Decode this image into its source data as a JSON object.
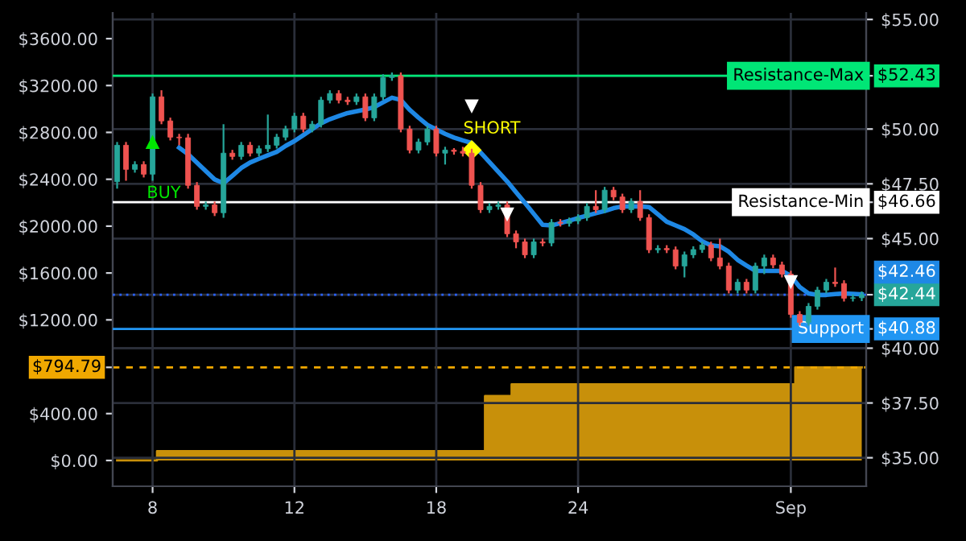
{
  "chart_data": {
    "type": "candlestick",
    "categories": [
      null,
      null,
      null,
      null,
      "8",
      null,
      null,
      null,
      null,
      null,
      null,
      null,
      null,
      null,
      null,
      null,
      null,
      null,
      null,
      null,
      "12",
      null,
      null,
      null,
      null,
      null,
      null,
      null,
      null,
      null,
      null,
      null,
      null,
      null,
      null,
      null,
      "18",
      null,
      null,
      null,
      null,
      null,
      null,
      null,
      null,
      null,
      null,
      null,
      null,
      null,
      null,
      null,
      "24",
      null,
      null,
      null,
      null,
      null,
      null,
      null,
      null,
      null,
      null,
      null,
      null,
      null,
      null,
      null,
      null,
      null,
      null,
      null,
      null,
      null,
      null,
      null,
      "Sep",
      null,
      null,
      null,
      null,
      null,
      null,
      null,
      null
    ],
    "ohlc": [
      [
        47.6,
        49.41,
        47.28,
        49.26
      ],
      [
        49.26,
        49.41,
        47.64,
        48.16
      ],
      [
        48.16,
        48.53,
        48.01,
        48.38
      ],
      [
        48.38,
        48.53,
        47.79,
        47.94
      ],
      [
        47.94,
        51.62,
        47.64,
        51.47
      ],
      [
        51.47,
        51.77,
        50.22,
        50.37
      ],
      [
        50.37,
        50.52,
        49.48,
        49.63
      ],
      [
        49.63,
        49.78,
        49.26,
        49.6
      ],
      [
        49.6,
        49.78,
        47.28,
        47.43
      ],
      [
        47.43,
        47.58,
        46.32,
        46.47
      ],
      [
        46.47,
        46.69,
        46.32,
        46.54
      ],
      [
        46.54,
        46.69,
        46.03,
        46.18
      ],
      [
        46.18,
        50.22,
        45.95,
        48.9
      ],
      [
        48.9,
        49.05,
        48.6,
        48.75
      ],
      [
        48.75,
        49.41,
        48.6,
        49.26
      ],
      [
        49.26,
        49.41,
        48.75,
        48.9
      ],
      [
        48.9,
        49.25,
        48.75,
        49.1
      ],
      [
        49.1,
        50.66,
        48.95,
        49.26
      ],
      [
        49.26,
        49.78,
        49.11,
        49.63
      ],
      [
        49.63,
        50.15,
        49.48,
        50.0
      ],
      [
        50.0,
        50.74,
        49.85,
        50.59
      ],
      [
        50.59,
        50.74,
        49.85,
        50.0
      ],
      [
        50.0,
        50.37,
        49.85,
        50.22
      ],
      [
        50.22,
        51.47,
        50.07,
        51.32
      ],
      [
        51.32,
        51.77,
        51.17,
        51.62
      ],
      [
        51.62,
        51.77,
        51.17,
        51.32
      ],
      [
        51.32,
        51.47,
        51.1,
        51.25
      ],
      [
        51.25,
        51.62,
        51.1,
        51.47
      ],
      [
        51.47,
        51.62,
        50.36,
        50.51
      ],
      [
        50.51,
        51.62,
        50.36,
        51.47
      ],
      [
        51.47,
        52.5,
        51.32,
        52.35
      ],
      [
        52.35,
        52.58,
        52.2,
        52.43
      ],
      [
        52.43,
        52.58,
        49.85,
        50.0
      ],
      [
        50.0,
        50.15,
        48.89,
        49.04
      ],
      [
        49.04,
        49.56,
        48.89,
        49.41
      ],
      [
        49.41,
        50.15,
        49.26,
        50.0
      ],
      [
        50.0,
        50.15,
        48.75,
        48.9
      ],
      [
        48.9,
        49.19,
        48.38,
        49.04
      ],
      [
        49.04,
        49.13,
        48.83,
        48.98
      ],
      [
        48.98,
        49.19,
        48.75,
        48.9
      ],
      [
        48.9,
        49.1,
        47.28,
        47.43
      ],
      [
        47.43,
        47.58,
        46.17,
        46.32
      ],
      [
        46.32,
        46.62,
        46.17,
        46.47
      ],
      [
        46.47,
        46.69,
        46.32,
        46.54
      ],
      [
        46.54,
        46.69,
        45.07,
        45.22
      ],
      [
        45.22,
        45.37,
        44.56,
        44.85
      ],
      [
        44.85,
        45.0,
        44.11,
        44.26
      ],
      [
        44.26,
        45.0,
        44.11,
        44.85
      ],
      [
        44.85,
        45.0,
        44.65,
        44.8
      ],
      [
        44.8,
        45.89,
        44.65,
        45.74
      ],
      [
        45.74,
        45.89,
        45.55,
        45.7
      ],
      [
        45.7,
        45.96,
        45.55,
        45.81
      ],
      [
        45.81,
        46.11,
        45.66,
        45.96
      ],
      [
        45.96,
        46.62,
        45.81,
        46.47
      ],
      [
        46.47,
        47.21,
        46.17,
        46.32
      ],
      [
        46.32,
        47.36,
        46.17,
        47.21
      ],
      [
        47.21,
        47.36,
        46.75,
        46.9
      ],
      [
        46.9,
        47.05,
        46.17,
        46.32
      ],
      [
        46.32,
        46.84,
        46.17,
        46.69
      ],
      [
        46.69,
        47.21,
        45.81,
        45.96
      ],
      [
        45.96,
        46.11,
        44.34,
        44.49
      ],
      [
        44.49,
        44.7,
        44.34,
        44.55
      ],
      [
        44.55,
        44.7,
        44.34,
        44.49
      ],
      [
        44.49,
        44.64,
        43.6,
        43.75
      ],
      [
        43.75,
        44.41,
        43.23,
        44.26
      ],
      [
        44.26,
        44.65,
        44.11,
        44.5
      ],
      [
        44.5,
        44.86,
        44.35,
        44.71
      ],
      [
        44.71,
        44.86,
        43.97,
        44.12
      ],
      [
        44.12,
        45.0,
        43.6,
        43.75
      ],
      [
        43.75,
        43.9,
        42.5,
        42.65
      ],
      [
        42.65,
        43.16,
        42.5,
        43.01
      ],
      [
        43.01,
        43.16,
        42.5,
        42.65
      ],
      [
        42.65,
        43.9,
        42.5,
        43.75
      ],
      [
        43.75,
        44.27,
        43.38,
        44.12
      ],
      [
        44.12,
        44.27,
        43.65,
        43.8
      ],
      [
        43.8,
        43.95,
        43.23,
        43.38
      ],
      [
        43.38,
        43.53,
        41.39,
        41.54
      ],
      [
        41.54,
        41.69,
        41.03,
        41.18
      ],
      [
        41.18,
        42.06,
        41.03,
        41.91
      ],
      [
        41.91,
        42.8,
        41.76,
        42.65
      ],
      [
        42.65,
        43.16,
        42.5,
        43.01
      ],
      [
        43.01,
        43.68,
        42.8,
        42.95
      ],
      [
        42.95,
        43.1,
        42.13,
        42.28
      ],
      [
        42.28,
        42.45,
        42.13,
        42.3
      ],
      [
        42.3,
        42.59,
        42.15,
        42.44
      ]
    ],
    "colors": [
      "#26a69a",
      "#ef5350",
      "#26a69a",
      "#ef5350",
      "#26a69a",
      "#ef5350",
      "#ef5350",
      "#ef5350",
      "#ef5350",
      "#ef5350",
      "#26a69a",
      "#ef5350",
      "#26a69a",
      "#ef5350",
      "#26a69a",
      "#ef5350",
      "#26a69a",
      "#26a69a",
      "#26a69a",
      "#26a69a",
      "#26a69a",
      "#ef5350",
      "#26a69a",
      "#26a69a",
      "#26a69a",
      "#ef5350",
      "#ef5350",
      "#26a69a",
      "#ef5350",
      "#26a69a",
      "#26a69a",
      "#26a69a",
      "#ef5350",
      "#ef5350",
      "#26a69a",
      "#26a69a",
      "#ef5350",
      "#26a69a",
      "#ef5350",
      "#ef5350",
      "#ef5350",
      "#ef5350",
      "#26a69a",
      "#26a69a",
      "#ef5350",
      "#ef5350",
      "#ef5350",
      "#26a69a",
      "#ef5350",
      "#26a69a",
      "#ef5350",
      "#26a69a",
      "#26a69a",
      "#26a69a",
      "#ef5350",
      "#26a69a",
      "#ef5350",
      "#ef5350",
      "#26a69a",
      "#ef5350",
      "#ef5350",
      "#26a69a",
      "#ef5350",
      "#ef5350",
      "#26a69a",
      "#26a69a",
      "#26a69a",
      "#ef5350",
      "#ef5350",
      "#ef5350",
      "#26a69a",
      "#ef5350",
      "#26a69a",
      "#26a69a",
      "#ef5350",
      "#ef5350",
      "#ef5350",
      "#ef5350",
      "#26a69a",
      "#26a69a",
      "#26a69a",
      "#ef5350",
      "#ef5350",
      "#26a69a",
      "#26a69a"
    ],
    "y2lim": [
      -220,
      3820
    ],
    "y2ticks": [
      {
        "value": 0,
        "label": "$0.00"
      },
      {
        "value": 400,
        "label": "$400.00"
      },
      {
        "value": 794.79,
        "label": "$794.79"
      },
      {
        "value": 1200,
        "label": "$1200.00"
      },
      {
        "value": 1600,
        "label": "$1600.00"
      },
      {
        "value": 2000,
        "label": "$2000.00"
      },
      {
        "value": 2400,
        "label": "$2400.00"
      },
      {
        "value": 2800,
        "label": "$2800.00"
      },
      {
        "value": 3200,
        "label": "$3200.00"
      },
      {
        "value": 3600,
        "label": "$3600.00"
      }
    ],
    "ylim": [
      33.7,
      55.3
    ],
    "yticks": [
      {
        "value": 35,
        "label": "$35.00"
      },
      {
        "value": 37.5,
        "label": "$37.50"
      },
      {
        "value": 40,
        "label": "$40.00"
      },
      {
        "value": 40.88,
        "label": "$40.88"
      },
      {
        "value": 42.44,
        "label": "$42.44"
      },
      {
        "value": 45,
        "label": "$45.00"
      },
      {
        "value": 46.66,
        "label": "$46.66"
      },
      {
        "value": 47.5,
        "label": "$47.50"
      },
      {
        "value": 50,
        "label": "$50.00"
      },
      {
        "value": 52.43,
        "label": "$52.43"
      },
      {
        "value": 55,
        "label": "$55.00"
      }
    ],
    "grid": true,
    "series": [
      {
        "type": "area",
        "axis": "y2",
        "color": "#c8900a",
        "values": [
          0,
          0,
          0,
          0,
          0,
          80,
          80,
          80,
          80,
          80,
          80,
          80,
          80,
          80,
          80,
          80,
          80,
          80,
          80,
          80,
          80,
          80,
          80,
          80,
          80,
          80,
          80,
          80,
          80,
          80,
          80,
          80,
          80,
          80,
          80,
          80,
          80,
          80,
          80,
          80,
          80,
          80,
          550,
          550,
          550,
          650,
          650,
          650,
          650,
          650,
          650,
          650,
          650,
          650,
          650,
          650,
          650,
          650,
          650,
          650,
          650,
          650,
          650,
          650,
          650,
          650,
          650,
          650,
          650,
          650,
          650,
          650,
          650,
          650,
          650,
          650,
          650,
          794.79,
          794.79,
          794.79,
          794.79,
          794.79,
          794.79,
          794.79,
          794.79
        ]
      },
      {
        "type": "line",
        "axis": "y",
        "color": "#1e88e5",
        "marker": "none",
        "line_style": "solid",
        "values": [
          null,
          null,
          null,
          null,
          null,
          null,
          null,
          49.15,
          48.85,
          48.47,
          48.08,
          47.7,
          47.53,
          47.87,
          48.22,
          48.47,
          48.64,
          48.8,
          48.96,
          49.23,
          49.45,
          49.72,
          49.99,
          50.26,
          50.45,
          50.59,
          50.73,
          50.81,
          50.89,
          51.0,
          51.22,
          51.43,
          51.33,
          50.88,
          50.52,
          50.19,
          49.98,
          49.78,
          49.61,
          49.48,
          49.36,
          48.93,
          48.49,
          48.05,
          47.61,
          47.12,
          46.63,
          46.13,
          45.63,
          45.6,
          45.71,
          45.82,
          45.94,
          46.05,
          46.16,
          46.26,
          46.39,
          46.47,
          46.47,
          46.47,
          46.44,
          46.11,
          45.77,
          45.6,
          45.43,
          45.19,
          44.88,
          44.69,
          44.65,
          44.4,
          44.03,
          43.77,
          43.53,
          43.53,
          43.53,
          43.53,
          43.3,
          42.79,
          42.5,
          42.43,
          42.43,
          42.47,
          42.5,
          42.48,
          42.46
        ]
      },
      {
        "type": "scatter",
        "axis": "y",
        "color": "#00e600",
        "marker": "triangle",
        "values": [
          null,
          null,
          null,
          null,
          49.41,
          null,
          null,
          null,
          null,
          null,
          null,
          null,
          null,
          null,
          null,
          null,
          null,
          null,
          null,
          null,
          null,
          null,
          null,
          null,
          null,
          null,
          null,
          null,
          null,
          null,
          null,
          null,
          null,
          null,
          null,
          null,
          null,
          null,
          null,
          null,
          null,
          null,
          null,
          null,
          null,
          null,
          null,
          null,
          null,
          null,
          null,
          null,
          null,
          null,
          null,
          null,
          null,
          null,
          null,
          null,
          null,
          null,
          null,
          null,
          null,
          null,
          null,
          null,
          null,
          null,
          null,
          null,
          null,
          null,
          null,
          null,
          null,
          null,
          null,
          null,
          null,
          null,
          null,
          null,
          null
        ]
      },
      {
        "type": "scatter",
        "axis": "y",
        "color": "#ffffff",
        "marker": "triangle_down",
        "values": [
          null,
          null,
          null,
          null,
          null,
          null,
          null,
          null,
          null,
          null,
          null,
          null,
          null,
          null,
          null,
          null,
          null,
          null,
          null,
          null,
          null,
          null,
          null,
          null,
          null,
          null,
          null,
          null,
          null,
          null,
          null,
          null,
          null,
          null,
          null,
          null,
          null,
          null,
          null,
          null,
          51.03,
          null,
          null,
          null,
          46.1,
          null,
          null,
          null,
          null,
          null,
          null,
          null,
          null,
          null,
          null,
          null,
          null,
          null,
          null,
          null,
          null,
          null,
          null,
          null,
          null,
          null,
          null,
          null,
          null,
          null,
          null,
          null,
          null,
          null,
          null,
          null,
          43.01,
          null,
          null,
          null,
          null,
          null,
          null,
          null,
          null
        ]
      },
      {
        "type": "scatter",
        "axis": "y",
        "color": "#ffff00",
        "marker": "diamond",
        "values": [
          null,
          null,
          null,
          null,
          null,
          null,
          null,
          null,
          null,
          null,
          null,
          null,
          null,
          null,
          null,
          null,
          null,
          null,
          null,
          null,
          null,
          null,
          null,
          null,
          null,
          null,
          null,
          null,
          null,
          null,
          null,
          null,
          null,
          null,
          null,
          null,
          null,
          null,
          null,
          null,
          49.04,
          null,
          null,
          null,
          null,
          null,
          null,
          null,
          null,
          null,
          null,
          null,
          null,
          null,
          null,
          null,
          null,
          null,
          null,
          null,
          null,
          null,
          null,
          null,
          null,
          null,
          null,
          null,
          null,
          null,
          null,
          null,
          null,
          null,
          null,
          null,
          null,
          null,
          null,
          null,
          null,
          null,
          null,
          null,
          null
        ]
      }
    ],
    "ref_lines": [
      {
        "axis": "y",
        "value": 52.43,
        "label": "Resistance-Max",
        "color": "#00e676",
        "line_style": "solid"
      },
      {
        "axis": "y",
        "value": 46.66,
        "label": "Resistance-Min",
        "color": "#ffffff",
        "line_style": "solid"
      },
      {
        "axis": "y",
        "value": 42.44,
        "color": "#2962ff",
        "line_style": "dotted"
      },
      {
        "axis": "y",
        "value": 40.88,
        "label": "Support",
        "color": "#2196f3",
        "line_style": "solid"
      },
      {
        "axis": "y2",
        "value": 794.79,
        "color": "#f0a800",
        "line_style": "dashed"
      }
    ],
    "annotations": [
      "BUY",
      "SHORT",
      "$42.46"
    ]
  }
}
